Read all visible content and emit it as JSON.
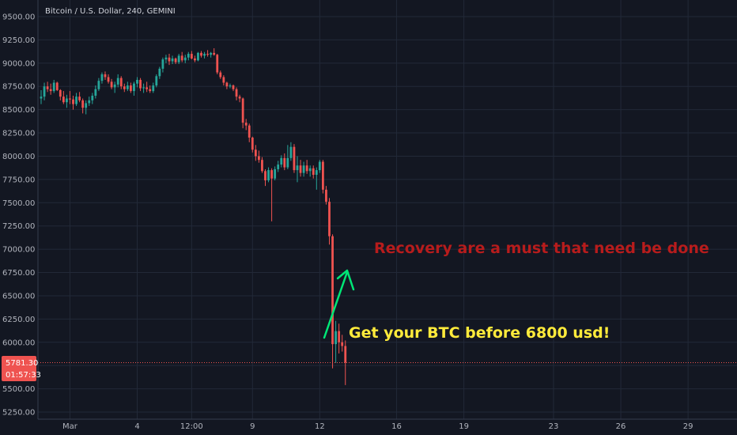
{
  "chart_data": {
    "type": "candlestick",
    "title": "Bitcoin / U.S. Dollar, 240, GEMINI",
    "ylim": [
      5200,
      9550
    ],
    "y_ticks": [
      "9500.00",
      "9250.00",
      "9000.00",
      "8750.00",
      "8500.00",
      "8250.00",
      "8000.00",
      "7750.00",
      "7500.00",
      "7250.00",
      "7000.00",
      "6750.00",
      "6500.00",
      "6250.00",
      "6000.00",
      "5750.00",
      "5500.00",
      "5250.00"
    ],
    "y_tick_values": [
      9500,
      9250,
      9000,
      8750,
      8500,
      8250,
      8000,
      7750,
      7500,
      7250,
      7000,
      6750,
      6500,
      6250,
      6000,
      5750,
      5500,
      5250
    ],
    "x_ticks": [
      {
        "label": "Mar",
        "index": 9
      },
      {
        "label": "4",
        "index": 30
      },
      {
        "label": "12:00",
        "index": 47
      },
      {
        "label": "9",
        "index": 66
      },
      {
        "label": "12",
        "index": 87
      },
      {
        "label": "16",
        "index": 111
      },
      {
        "label": "19",
        "index": 132
      },
      {
        "label": "23",
        "index": 160
      },
      {
        "label": "26",
        "index": 181
      },
      {
        "label": "29",
        "index": 202
      }
    ],
    "last_price": "5781.30",
    "last_price_value": 5781.3,
    "countdown": "01:57:33",
    "colors": {
      "up": "#26a69a",
      "down": "#ef5350",
      "price_line": "#ef5350"
    },
    "candles": [
      [
        8620,
        8710,
        8560,
        8640
      ],
      [
        8640,
        8790,
        8600,
        8750
      ],
      [
        8750,
        8800,
        8690,
        8720
      ],
      [
        8720,
        8780,
        8660,
        8700
      ],
      [
        8700,
        8820,
        8680,
        8790
      ],
      [
        8790,
        8800,
        8700,
        8710
      ],
      [
        8710,
        8720,
        8600,
        8640
      ],
      [
        8640,
        8700,
        8560,
        8580
      ],
      [
        8580,
        8660,
        8520,
        8620
      ],
      [
        8620,
        8700,
        8560,
        8610
      ],
      [
        8610,
        8650,
        8500,
        8560
      ],
      [
        8560,
        8680,
        8540,
        8640
      ],
      [
        8640,
        8690,
        8580,
        8600
      ],
      [
        8600,
        8620,
        8460,
        8520
      ],
      [
        8520,
        8600,
        8450,
        8570
      ],
      [
        8570,
        8640,
        8540,
        8600
      ],
      [
        8600,
        8680,
        8560,
        8650
      ],
      [
        8650,
        8760,
        8620,
        8720
      ],
      [
        8720,
        8840,
        8700,
        8810
      ],
      [
        8810,
        8900,
        8780,
        8880
      ],
      [
        8880,
        8910,
        8820,
        8850
      ],
      [
        8850,
        8880,
        8780,
        8800
      ],
      [
        8800,
        8830,
        8720,
        8740
      ],
      [
        8740,
        8800,
        8680,
        8770
      ],
      [
        8770,
        8880,
        8740,
        8840
      ],
      [
        8840,
        8860,
        8720,
        8750
      ],
      [
        8750,
        8780,
        8690,
        8720
      ],
      [
        8720,
        8800,
        8700,
        8760
      ],
      [
        8760,
        8790,
        8680,
        8700
      ],
      [
        8700,
        8800,
        8650,
        8780
      ],
      [
        8780,
        8850,
        8740,
        8820
      ],
      [
        8820,
        8840,
        8700,
        8730
      ],
      [
        8730,
        8780,
        8680,
        8740
      ],
      [
        8740,
        8800,
        8690,
        8720
      ],
      [
        8720,
        8760,
        8680,
        8700
      ],
      [
        8700,
        8790,
        8680,
        8760
      ],
      [
        8760,
        8880,
        8740,
        8860
      ],
      [
        8860,
        8960,
        8830,
        8940
      ],
      [
        8940,
        9060,
        8900,
        9040
      ],
      [
        9040,
        9090,
        9000,
        9060
      ],
      [
        9060,
        9100,
        8980,
        9020
      ],
      [
        9020,
        9080,
        8990,
        9050
      ],
      [
        9050,
        9060,
        8990,
        9010
      ],
      [
        9010,
        9100,
        8990,
        9080
      ],
      [
        9080,
        9120,
        9010,
        9030
      ],
      [
        9030,
        9090,
        9000,
        9060
      ],
      [
        9060,
        9120,
        9030,
        9100
      ],
      [
        9100,
        9130,
        9040,
        9050
      ],
      [
        9050,
        9080,
        9010,
        9030
      ],
      [
        9030,
        9120,
        9020,
        9110
      ],
      [
        9110,
        9130,
        9060,
        9080
      ],
      [
        9080,
        9120,
        9050,
        9100
      ],
      [
        9100,
        9140,
        9070,
        9090
      ],
      [
        9090,
        9120,
        9060,
        9110
      ],
      [
        9110,
        9160,
        9080,
        9090
      ],
      [
        9090,
        9100,
        8880,
        8900
      ],
      [
        8900,
        8920,
        8830,
        8850
      ],
      [
        8850,
        8870,
        8760,
        8790
      ],
      [
        8790,
        8800,
        8720,
        8750
      ],
      [
        8750,
        8780,
        8730,
        8760
      ],
      [
        8760,
        8770,
        8700,
        8720
      ],
      [
        8720,
        8740,
        8600,
        8640
      ],
      [
        8640,
        8660,
        8580,
        8620
      ],
      [
        8620,
        8630,
        8300,
        8360
      ],
      [
        8360,
        8400,
        8280,
        8330
      ],
      [
        8330,
        8350,
        8150,
        8200
      ],
      [
        8200,
        8210,
        8040,
        8070
      ],
      [
        8070,
        8120,
        7950,
        8000
      ],
      [
        8000,
        8060,
        7930,
        7960
      ],
      [
        7960,
        7990,
        7820,
        7840
      ],
      [
        7840,
        7860,
        7680,
        7740
      ],
      [
        7740,
        7880,
        7720,
        7850
      ],
      [
        7850,
        7870,
        7300,
        7760
      ],
      [
        7760,
        7890,
        7740,
        7860
      ],
      [
        7860,
        7950,
        7830,
        7910
      ],
      [
        7910,
        8010,
        7880,
        7980
      ],
      [
        7980,
        8030,
        7850,
        7880
      ],
      [
        7880,
        8120,
        7860,
        7980
      ],
      [
        7980,
        8150,
        7950,
        8100
      ],
      [
        8100,
        8130,
        7820,
        7850
      ],
      [
        7850,
        8000,
        7720,
        7900
      ],
      [
        7900,
        7960,
        7780,
        7820
      ],
      [
        7820,
        7940,
        7780,
        7900
      ],
      [
        7900,
        7960,
        7810,
        7840
      ],
      [
        7840,
        7900,
        7780,
        7870
      ],
      [
        7870,
        7900,
        7760,
        7800
      ],
      [
        7800,
        7880,
        7640,
        7850
      ],
      [
        7850,
        7960,
        7820,
        7940
      ],
      [
        7940,
        7960,
        7600,
        7640
      ],
      [
        7640,
        7680,
        7480,
        7510
      ],
      [
        7510,
        7550,
        7050,
        7140
      ],
      [
        7140,
        7160,
        5720,
        5980
      ],
      [
        5980,
        6230,
        5780,
        6120
      ],
      [
        6120,
        6200,
        5880,
        6000
      ],
      [
        6000,
        6080,
        5900,
        5960
      ],
      [
        5960,
        6020,
        5540,
        5781.3
      ]
    ]
  },
  "annotations": {
    "recovery": "Recovery are a must that need be done",
    "buy": "Get your BTC before 6800 usd!"
  }
}
